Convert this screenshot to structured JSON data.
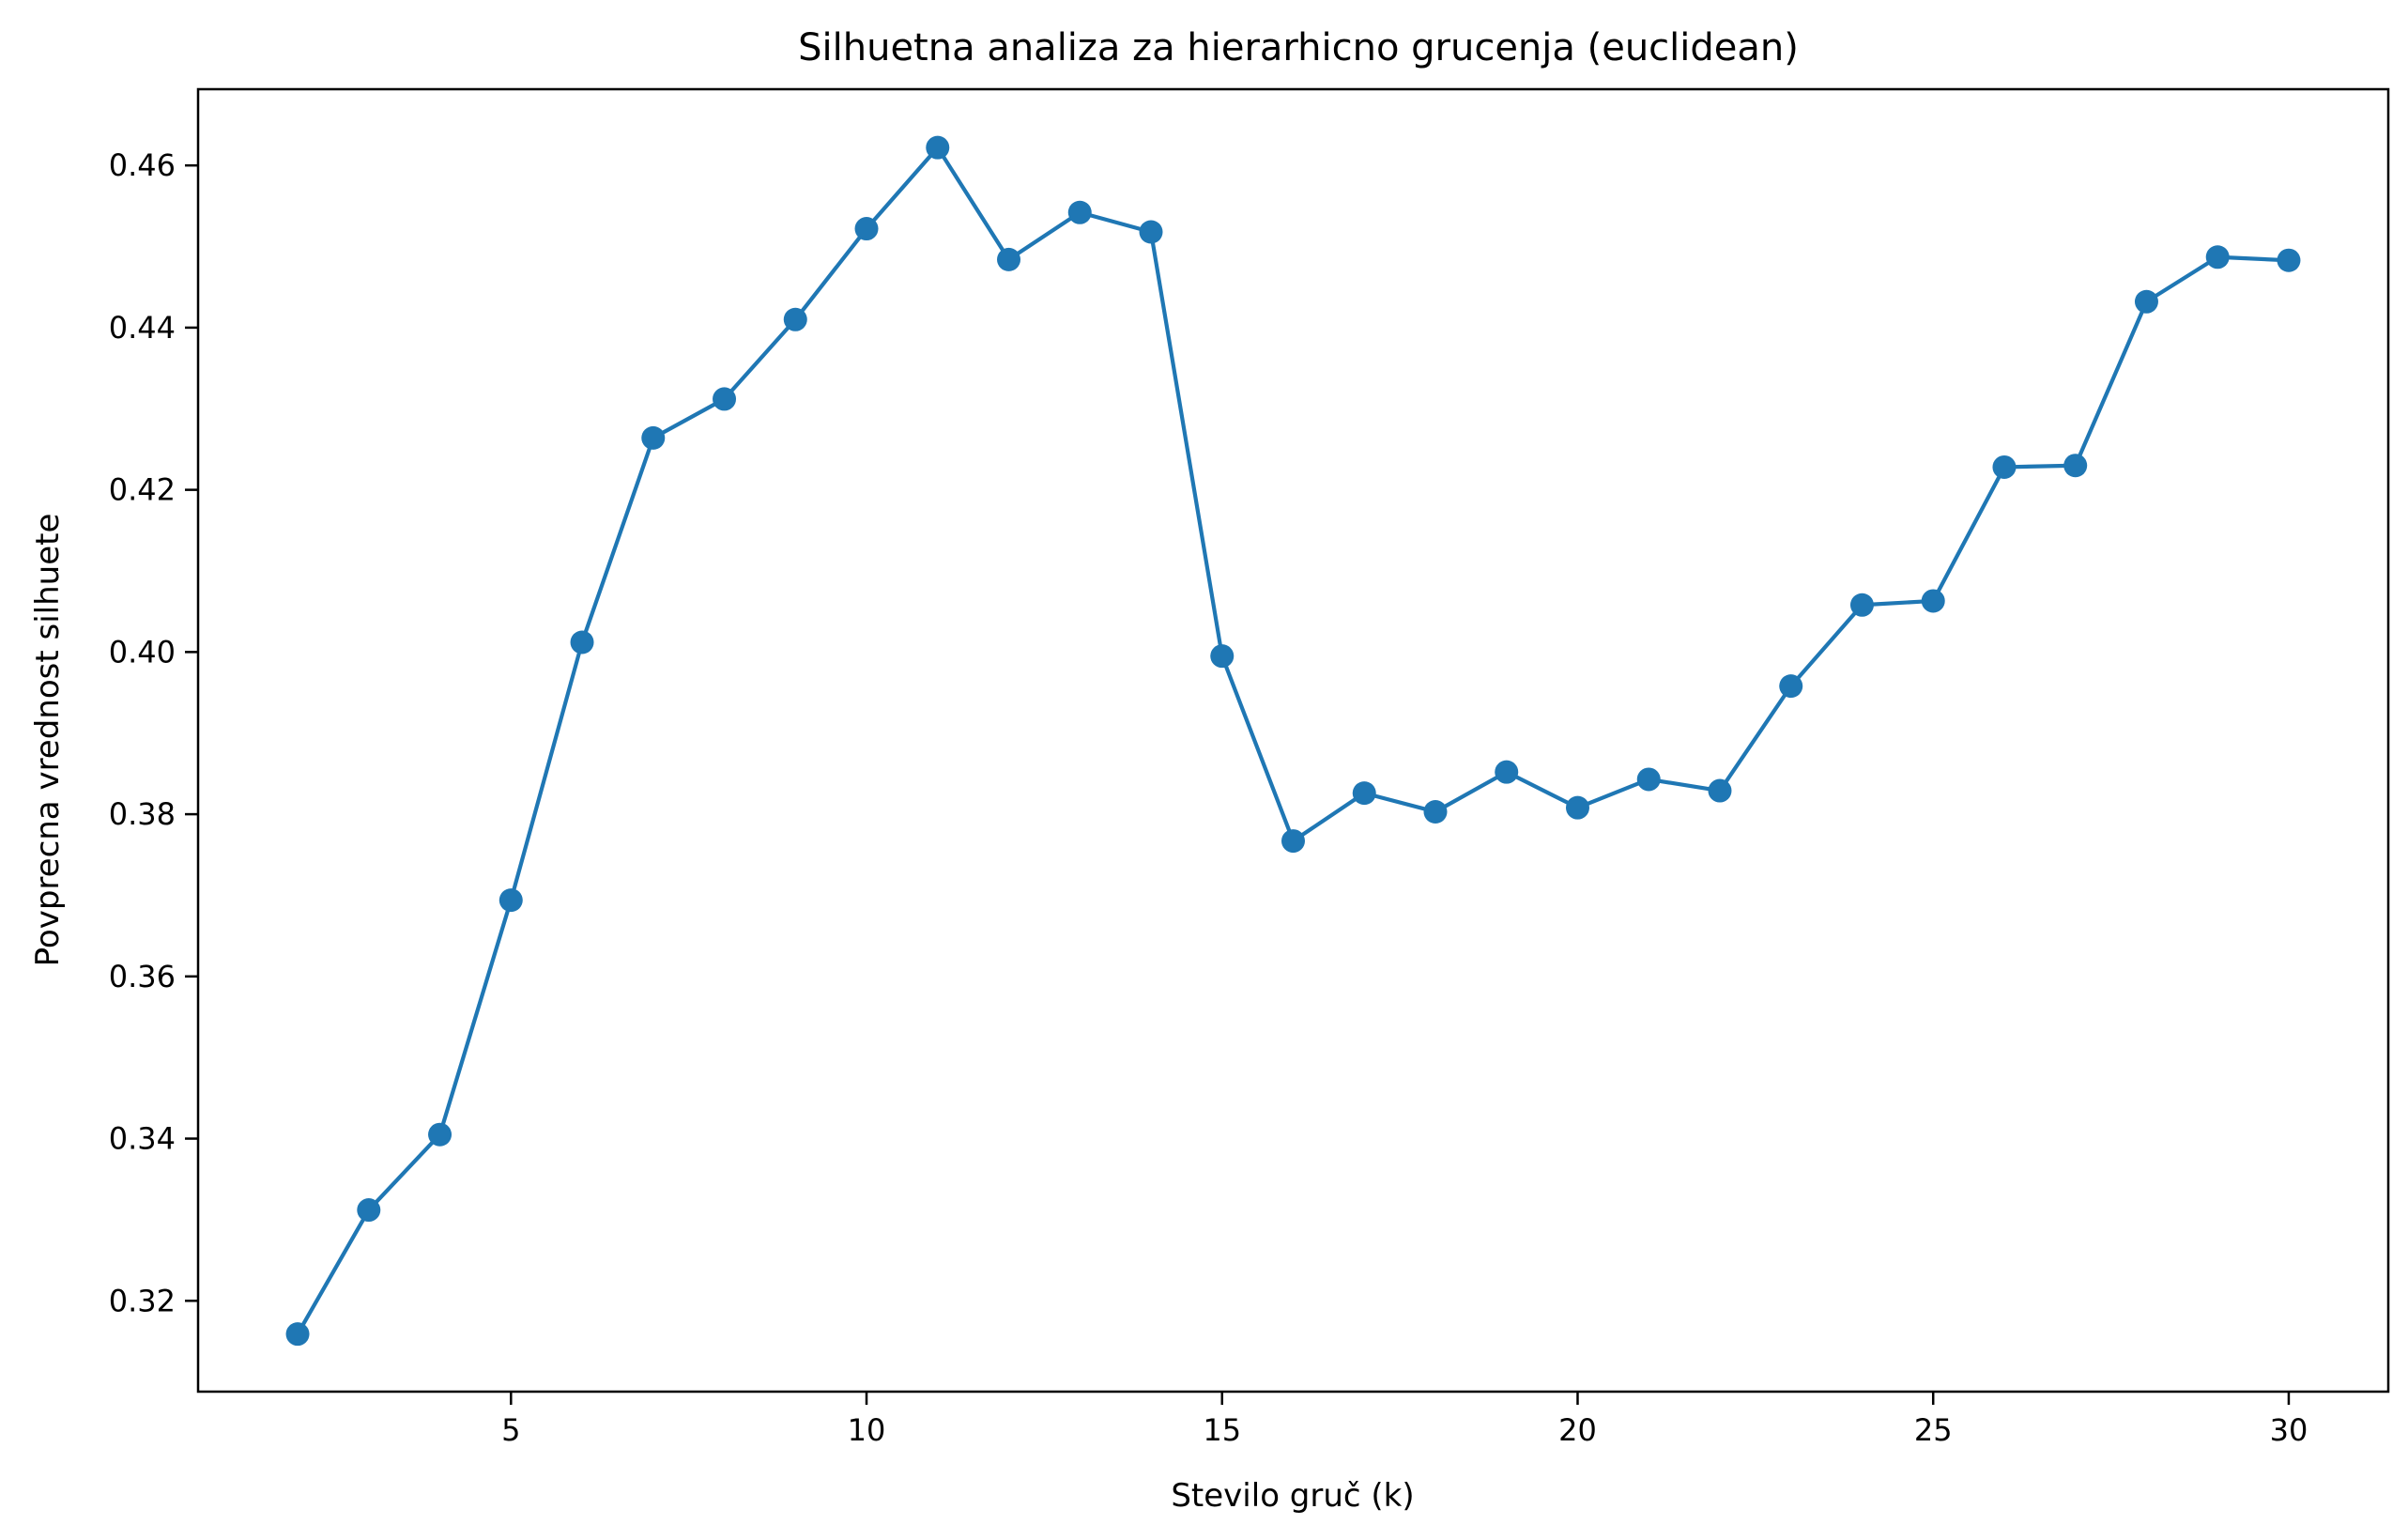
{
  "chart_data": {
    "type": "line",
    "title": "Silhuetna analiza za hierarhicno grucenja (euclidean)",
    "xlabel": "Stevilo gruč (k)",
    "ylabel": "Povprecna vrednost silhuete",
    "xlim": [
      0.6,
      31.4
    ],
    "ylim": [
      0.3088,
      0.4694
    ],
    "xticks": [
      5,
      10,
      15,
      20,
      25,
      30
    ],
    "xtick_labels": [
      "5",
      "10",
      "15",
      "20",
      "25",
      "30"
    ],
    "yticks": [
      0.32,
      0.34,
      0.36,
      0.38,
      0.4,
      0.42,
      0.44,
      0.46
    ],
    "ytick_labels": [
      "0.32",
      "0.34",
      "0.36",
      "0.38",
      "0.40",
      "0.42",
      "0.44",
      "0.46"
    ],
    "grid": false,
    "color": "#1f77b4",
    "marker": "circle",
    "x": [
      2,
      3,
      4,
      5,
      6,
      7,
      8,
      9,
      10,
      11,
      12,
      13,
      14,
      15,
      16,
      17,
      18,
      19,
      20,
      21,
      22,
      23,
      24,
      25,
      26,
      27,
      28,
      29,
      30
    ],
    "y": [
      0.3159,
      0.3312,
      0.3405,
      0.3694,
      0.4012,
      0.4264,
      0.4312,
      0.441,
      0.4522,
      0.4622,
      0.4484,
      0.4542,
      0.4518,
      0.3995,
      0.3767,
      0.3826,
      0.3803,
      0.3852,
      0.3808,
      0.3843,
      0.3829,
      0.3958,
      0.4058,
      0.4063,
      0.4228,
      0.423,
      0.4432,
      0.4487,
      0.4483
    ]
  }
}
